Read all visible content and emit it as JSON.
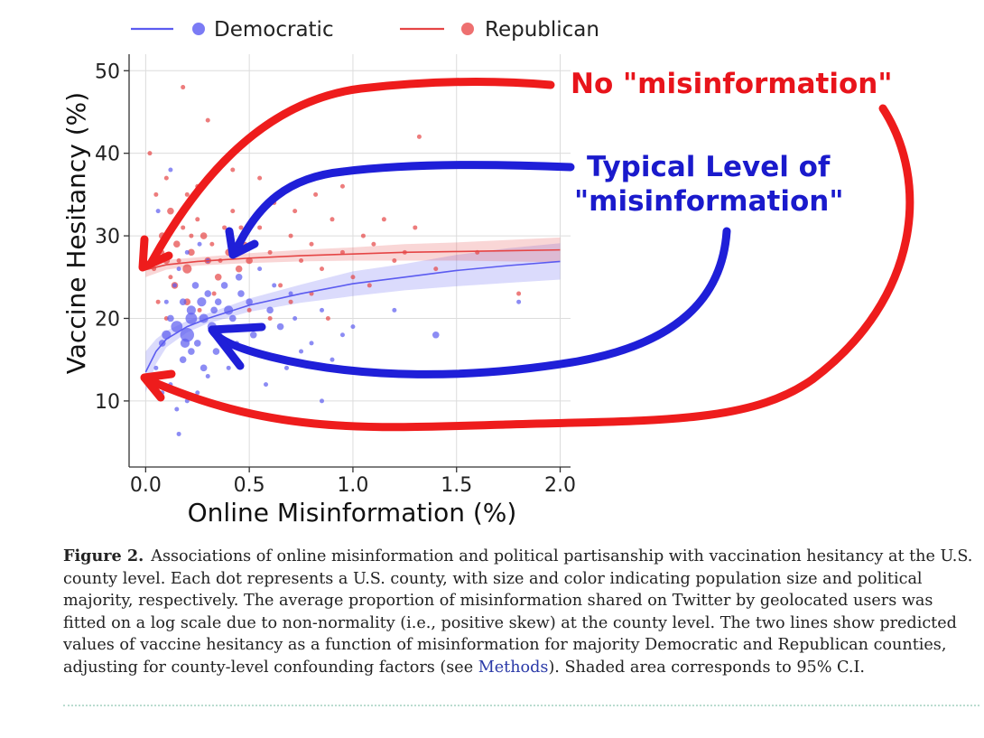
{
  "chart_data": {
    "type": "scatter",
    "xlabel": "Online Misinformation (%)",
    "ylabel": "Vaccine Hesitancy (%)",
    "xlim": [
      -0.08,
      2.05
    ],
    "ylim": [
      2,
      52
    ],
    "x_ticks": [
      "0.0",
      "0.5",
      "1.0",
      "1.5",
      "2.0"
    ],
    "x_tick_values": [
      0,
      0.5,
      1.0,
      1.5,
      2.0
    ],
    "y_ticks": [
      "10",
      "20",
      "30",
      "40",
      "50"
    ],
    "y_tick_values": [
      10,
      20,
      30,
      40,
      50
    ],
    "grid": true,
    "legend_position": "top",
    "series": [
      {
        "name": "Democratic",
        "color": "#5b5bf0",
        "fit_line": {
          "x": [
            0.0,
            0.05,
            0.1,
            0.2,
            0.3,
            0.5,
            0.75,
            1.0,
            1.25,
            1.5,
            1.75,
            2.0
          ],
          "y": [
            13.5,
            16.0,
            17.5,
            19.0,
            20.0,
            21.6,
            23.0,
            24.2,
            25.0,
            25.8,
            26.4,
            26.9
          ],
          "ci_low": [
            11.0,
            14.5,
            16.5,
            18.3,
            19.4,
            20.8,
            21.9,
            22.7,
            23.4,
            23.9,
            24.3,
            24.7
          ],
          "ci_high": [
            16.0,
            17.5,
            18.5,
            19.7,
            20.6,
            22.4,
            24.1,
            25.7,
            26.6,
            27.7,
            28.5,
            29.1
          ]
        },
        "points": [
          [
            0.05,
            14
          ],
          [
            0.08,
            17
          ],
          [
            0.1,
            18
          ],
          [
            0.12,
            20
          ],
          [
            0.15,
            19
          ],
          [
            0.18,
            22
          ],
          [
            0.2,
            18
          ],
          [
            0.22,
            21
          ],
          [
            0.25,
            17
          ],
          [
            0.28,
            20
          ],
          [
            0.3,
            23
          ],
          [
            0.32,
            19
          ],
          [
            0.35,
            22
          ],
          [
            0.38,
            24
          ],
          [
            0.4,
            21
          ],
          [
            0.42,
            20
          ],
          [
            0.45,
            25
          ],
          [
            0.5,
            22
          ],
          [
            0.55,
            26
          ],
          [
            0.6,
            21
          ],
          [
            0.65,
            19
          ],
          [
            0.7,
            23
          ],
          [
            0.08,
            11
          ],
          [
            0.12,
            12
          ],
          [
            0.15,
            9
          ],
          [
            0.2,
            10
          ],
          [
            0.25,
            11
          ],
          [
            0.18,
            15
          ],
          [
            0.22,
            16
          ],
          [
            0.28,
            14
          ],
          [
            0.1,
            22
          ],
          [
            0.14,
            24
          ],
          [
            0.16,
            26
          ],
          [
            0.24,
            24
          ],
          [
            0.3,
            27
          ],
          [
            0.34,
            16
          ],
          [
            0.36,
            18
          ],
          [
            0.44,
            17
          ],
          [
            0.48,
            19
          ],
          [
            0.52,
            18
          ],
          [
            0.2,
            28
          ],
          [
            0.26,
            29
          ],
          [
            0.12,
            38
          ],
          [
            0.06,
            33
          ],
          [
            0.75,
            16
          ],
          [
            0.8,
            17
          ],
          [
            0.9,
            15
          ],
          [
            1.0,
            19
          ],
          [
            1.2,
            21
          ],
          [
            1.4,
            18
          ],
          [
            1.8,
            22
          ],
          [
            0.16,
            6
          ],
          [
            0.3,
            13
          ],
          [
            0.4,
            14
          ],
          [
            0.58,
            12
          ],
          [
            0.68,
            14
          ],
          [
            0.85,
            21
          ],
          [
            0.95,
            18
          ],
          [
            0.22,
            20
          ],
          [
            0.19,
            17
          ],
          [
            0.27,
            22
          ],
          [
            0.33,
            21
          ],
          [
            0.46,
            23
          ],
          [
            0.62,
            24
          ],
          [
            0.72,
            20
          ],
          [
            0.85,
            10
          ]
        ],
        "point_sizes": [
          1,
          2,
          3,
          2,
          4,
          2,
          5,
          3,
          2,
          3,
          2,
          3,
          2,
          2,
          3,
          2,
          2,
          2,
          1,
          2,
          2,
          1,
          1,
          1,
          1,
          1,
          1,
          2,
          2,
          2,
          1,
          1,
          1,
          2,
          1,
          2,
          1,
          1,
          1,
          2,
          1,
          1,
          1,
          1,
          1,
          1,
          1,
          1,
          1,
          2,
          1,
          1,
          1,
          1,
          1,
          1,
          1,
          1,
          4,
          3,
          3,
          2,
          2,
          1,
          1,
          1
        ]
      },
      {
        "name": "Republican",
        "color": "#e54545",
        "fit_line": {
          "x": [
            0.0,
            0.1,
            0.25,
            0.5,
            0.75,
            1.0,
            1.25,
            1.5,
            1.75,
            2.0
          ],
          "y": [
            25.9,
            26.5,
            26.9,
            27.3,
            27.6,
            27.8,
            28.0,
            28.1,
            28.2,
            28.3
          ],
          "ci_low": [
            25.0,
            25.9,
            26.4,
            26.7,
            26.9,
            27.0,
            27.0,
            27.0,
            26.9,
            26.8
          ],
          "ci_high": [
            26.8,
            27.1,
            27.4,
            27.9,
            28.3,
            28.6,
            29.0,
            29.2,
            29.5,
            29.8
          ]
        },
        "points": [
          [
            0.02,
            40
          ],
          [
            0.05,
            35
          ],
          [
            0.08,
            30
          ],
          [
            0.1,
            27
          ],
          [
            0.12,
            33
          ],
          [
            0.15,
            29
          ],
          [
            0.18,
            31
          ],
          [
            0.2,
            26
          ],
          [
            0.22,
            28
          ],
          [
            0.25,
            32
          ],
          [
            0.28,
            30
          ],
          [
            0.3,
            27
          ],
          [
            0.32,
            29
          ],
          [
            0.35,
            25
          ],
          [
            0.38,
            31
          ],
          [
            0.4,
            28
          ],
          [
            0.42,
            33
          ],
          [
            0.45,
            26
          ],
          [
            0.48,
            29
          ],
          [
            0.5,
            27
          ],
          [
            0.55,
            31
          ],
          [
            0.6,
            28
          ],
          [
            0.65,
            24
          ],
          [
            0.7,
            30
          ],
          [
            0.75,
            27
          ],
          [
            0.8,
            29
          ],
          [
            0.85,
            26
          ],
          [
            0.9,
            32
          ],
          [
            0.95,
            28
          ],
          [
            1.0,
            25
          ],
          [
            1.1,
            29
          ],
          [
            1.2,
            27
          ],
          [
            1.3,
            31
          ],
          [
            1.4,
            26
          ],
          [
            1.6,
            28
          ],
          [
            1.8,
            23
          ],
          [
            0.18,
            48
          ],
          [
            0.3,
            44
          ],
          [
            1.32,
            42
          ],
          [
            0.1,
            37
          ],
          [
            0.2,
            35
          ],
          [
            0.25,
            36
          ],
          [
            0.42,
            38
          ],
          [
            0.55,
            37
          ],
          [
            0.62,
            34
          ],
          [
            0.72,
            33
          ],
          [
            0.82,
            35
          ],
          [
            0.95,
            36
          ],
          [
            1.05,
            30
          ],
          [
            1.15,
            32
          ],
          [
            1.25,
            28
          ],
          [
            0.06,
            22
          ],
          [
            0.1,
            20
          ],
          [
            0.14,
            24
          ],
          [
            0.2,
            22
          ],
          [
            0.26,
            21
          ],
          [
            0.33,
            23
          ],
          [
            0.5,
            21
          ],
          [
            0.6,
            20
          ],
          [
            0.7,
            22
          ],
          [
            0.8,
            23
          ],
          [
            0.88,
            20
          ],
          [
            1.08,
            24
          ],
          [
            0.04,
            26
          ],
          [
            0.08,
            28
          ],
          [
            0.12,
            25
          ],
          [
            0.16,
            27
          ],
          [
            0.22,
            30
          ],
          [
            0.36,
            27
          ],
          [
            0.46,
            31
          ]
        ],
        "point_sizes": [
          1,
          1,
          2,
          2,
          2,
          2,
          1,
          3,
          2,
          1,
          2,
          2,
          1,
          2,
          1,
          2,
          1,
          2,
          1,
          2,
          1,
          1,
          1,
          1,
          1,
          1,
          1,
          1,
          1,
          1,
          1,
          1,
          1,
          1,
          1,
          1,
          1,
          1,
          1,
          1,
          1,
          1,
          1,
          1,
          1,
          1,
          1,
          1,
          1,
          1,
          1,
          1,
          1,
          2,
          2,
          1,
          1,
          1,
          1,
          1,
          1,
          1,
          1,
          1,
          1,
          1,
          1,
          1,
          1,
          1
        ]
      }
    ],
    "annotations": [
      {
        "text": "No \"misinformation\"",
        "color": "#e8141b",
        "points_to": "low misinformation / range of vaccine hesitancy"
      },
      {
        "text_lines": [
          "Typical Level of",
          "\"misinformation\""
        ],
        "color": "#1a1acc",
        "points_to": "typical misinformation level"
      }
    ]
  },
  "legend": {
    "democratic_label": "Democratic",
    "republican_label": "Republican"
  },
  "annotation_red": "No \"misinformation\"",
  "annotation_blue_line1": "Typical Level of",
  "annotation_blue_line2": "\"misinformation\"",
  "caption": {
    "label": "Figure 2.",
    "text_before_link": "Associations of online misinformation and political partisanship with vaccination hesitancy at the U.S. county level. Each dot represents a U.S. county, with size and color indicating population size and political majority, respectively. The average proportion of misinformation shared on Twitter by geolocated users was fitted on a log scale due to non-normality (i.e., positive skew) at the county level. The two lines show predicted values of vaccine hesitancy as a function of misinformation for majority Democratic and Republican counties, adjusting for county-level confounding factors (see",
    "link_text": "Methods",
    "text_after_link": "). Shaded area corresponds to 95% C.I."
  }
}
